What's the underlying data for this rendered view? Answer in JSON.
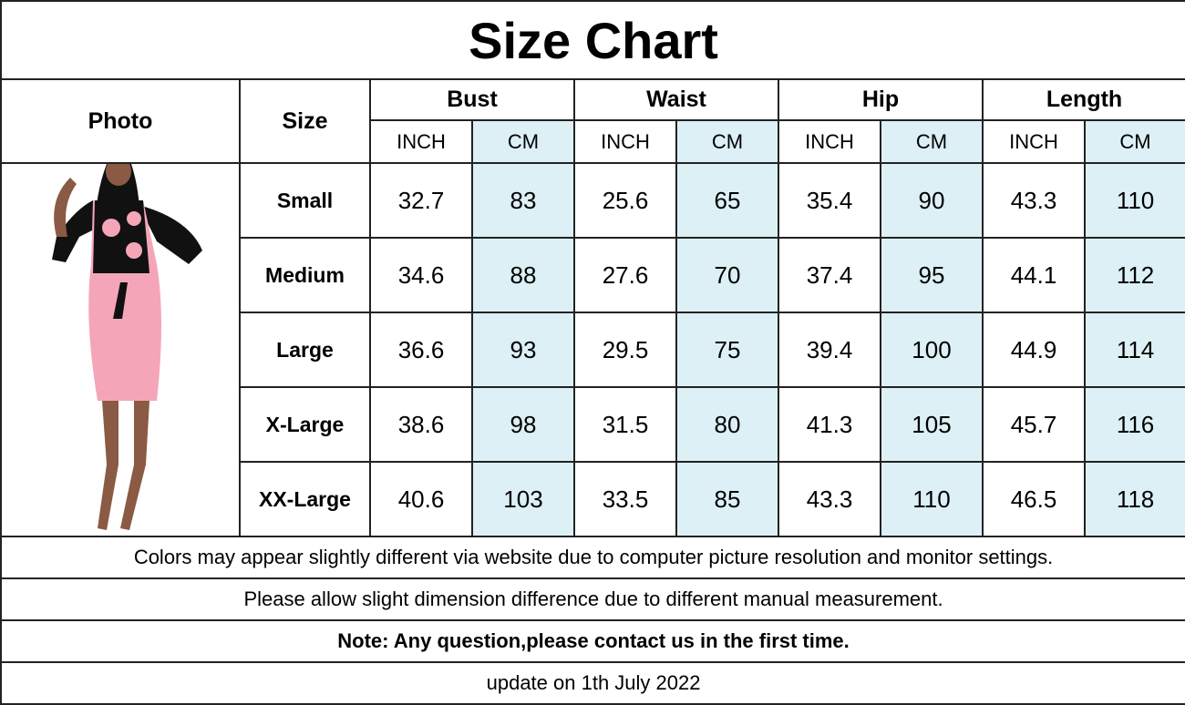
{
  "title": "Size Chart",
  "headers": {
    "photo": "Photo",
    "size": "Size",
    "groups": [
      "Bust",
      "Waist",
      "Hip",
      "Length"
    ],
    "units": [
      "INCH",
      "CM"
    ]
  },
  "rows": [
    {
      "size": "Small",
      "values": [
        "32.7",
        "83",
        "25.6",
        "65",
        "35.4",
        "90",
        "43.3",
        "110"
      ]
    },
    {
      "size": "Medium",
      "values": [
        "34.6",
        "88",
        "27.6",
        "70",
        "37.4",
        "95",
        "44.1",
        "112"
      ]
    },
    {
      "size": "Large",
      "values": [
        "36.6",
        "93",
        "29.5",
        "75",
        "39.4",
        "100",
        "44.9",
        "114"
      ]
    },
    {
      "size": "X-Large",
      "values": [
        "38.6",
        "98",
        "31.5",
        "80",
        "41.3",
        "105",
        "45.7",
        "116"
      ]
    },
    {
      "size": "XX-Large",
      "values": [
        "40.6",
        "103",
        "33.5",
        "85",
        "43.3",
        "110",
        "46.5",
        "118"
      ]
    }
  ],
  "notes": [
    "Colors may appear slightly different via website due to computer picture resolution and monitor settings.",
    "Please allow slight dimension difference due to different manual measurement.",
    "Note: Any question,please contact us in the first time.",
    "update on 1th July 2022"
  ],
  "colors": {
    "cm_column": "#dcf0f6",
    "dress_pink": "#f4a6b8",
    "border": "#222222"
  }
}
